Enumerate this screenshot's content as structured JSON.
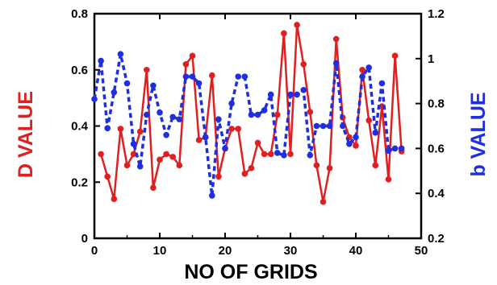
{
  "chart_data": {
    "type": "line",
    "title": "",
    "xlabel": "NO OF GRIDS",
    "ylabel": "D VALUE",
    "y2label": "b VALUE",
    "xlim": [
      0,
      50
    ],
    "ylim": [
      0,
      0.8
    ],
    "y2lim": [
      0.2,
      1.2
    ],
    "xticks": [
      "0",
      "10",
      "20",
      "30",
      "40",
      "50"
    ],
    "yticks": [
      "0",
      "0.2",
      "0.4",
      "0.6",
      "0.8"
    ],
    "y2ticks": [
      "0.2",
      "0.4",
      "0.6",
      "0.8",
      "1",
      "1.2"
    ],
    "grid": false,
    "legend": "none",
    "colors": {
      "d_series": "#e02020",
      "b_series": "#1f2ee0",
      "axes": "#000000"
    },
    "series": [
      {
        "axis": "left",
        "style": "solid",
        "x": [
          1,
          2,
          3,
          4,
          5,
          6,
          7,
          8,
          9,
          10,
          11,
          12,
          13,
          14,
          15,
          16,
          17,
          18,
          19,
          20,
          21,
          22,
          23,
          24,
          25,
          26,
          27,
          28,
          29,
          30,
          31,
          32,
          33,
          34,
          35,
          36,
          37,
          38,
          39,
          40,
          41,
          42,
          43,
          44,
          45,
          46,
          47
        ],
        "values": [
          0.3,
          0.22,
          0.14,
          0.39,
          0.26,
          0.3,
          0.38,
          0.6,
          0.18,
          0.28,
          0.3,
          0.29,
          0.26,
          0.62,
          0.65,
          0.35,
          0.36,
          0.58,
          0.22,
          0.32,
          0.39,
          0.39,
          0.23,
          0.25,
          0.34,
          0.3,
          0.3,
          0.44,
          0.73,
          0.3,
          0.76,
          0.62,
          0.45,
          0.26,
          0.13,
          0.25,
          0.71,
          0.43,
          0.36,
          0.33,
          0.6,
          0.42,
          0.26,
          0.47,
          0.21,
          0.65,
          0.31
        ]
      },
      {
        "axis": "right",
        "style": "dashed",
        "x": [
          0,
          1,
          2,
          3,
          4,
          5,
          6,
          7,
          8,
          9,
          10,
          11,
          12,
          13,
          14,
          15,
          16,
          17,
          18,
          19,
          20,
          21,
          22,
          23,
          24,
          25,
          26,
          27,
          28,
          29,
          30,
          31,
          32,
          33,
          34,
          35,
          36,
          37,
          38,
          39,
          40,
          41,
          42,
          43,
          44,
          45,
          46,
          47
        ],
        "values": [
          0.82,
          0.99,
          0.69,
          0.85,
          1.02,
          0.89,
          0.62,
          0.52,
          0.75,
          0.88,
          0.76,
          0.66,
          0.74,
          0.73,
          0.92,
          0.92,
          0.89,
          0.65,
          0.39,
          0.73,
          0.6,
          0.8,
          0.92,
          0.92,
          0.75,
          0.75,
          0.77,
          0.84,
          0.58,
          0.57,
          0.84,
          0.84,
          0.86,
          0.57,
          0.7,
          0.7,
          0.7,
          0.98,
          0.7,
          0.62,
          0.65,
          0.92,
          0.96,
          0.67,
          0.89,
          0.59,
          0.6,
          0.6
        ]
      }
    ]
  }
}
